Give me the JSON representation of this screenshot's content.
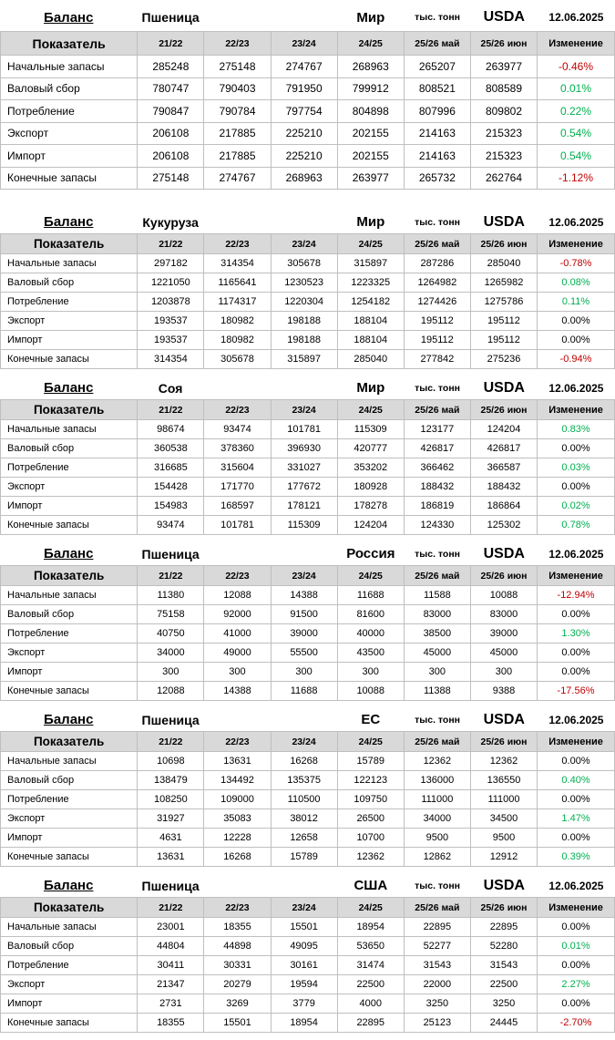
{
  "colors": {
    "positive": "#00B050",
    "negative": "#C00000",
    "neutral": "#000000",
    "header_bg": "#D9D9D9",
    "border": "#BFBFBF"
  },
  "report": {
    "columns": [
      "Показатель",
      "21/22",
      "22/23",
      "23/24",
      "24/25",
      "25/26 май",
      "25/26 июн",
      "Изменение"
    ],
    "tables": [
      {
        "balance_label": "Баланс",
        "commodity": "Пшеница",
        "region": "Мир",
        "units": "тыс. тонн",
        "source": "USDA",
        "date": "12.06.2025",
        "rows": [
          {
            "label": "Начальные запасы",
            "values": [
              "285248",
              "275148",
              "274767",
              "268963",
              "265207",
              "263977"
            ],
            "change": "-0.46%",
            "trend": "negative"
          },
          {
            "label": "Валовый сбор",
            "values": [
              "780747",
              "790403",
              "791950",
              "799912",
              "808521",
              "808589"
            ],
            "change": "0.01%",
            "trend": "positive"
          },
          {
            "label": "Потребление",
            "values": [
              "790847",
              "790784",
              "797754",
              "804898",
              "807996",
              "809802"
            ],
            "change": "0.22%",
            "trend": "positive"
          },
          {
            "label": "Экспорт",
            "values": [
              "206108",
              "217885",
              "225210",
              "202155",
              "214163",
              "215323"
            ],
            "change": "0.54%",
            "trend": "positive"
          },
          {
            "label": "Импорт",
            "values": [
              "206108",
              "217885",
              "225210",
              "202155",
              "214163",
              "215323"
            ],
            "change": "0.54%",
            "trend": "positive"
          },
          {
            "label": "Конечные запасы",
            "values": [
              "275148",
              "274767",
              "268963",
              "263977",
              "265732",
              "262764"
            ],
            "change": "-1.12%",
            "trend": "negative"
          }
        ]
      },
      {
        "balance_label": "Баланс",
        "commodity": "Кукуруза",
        "region": "Мир",
        "units": "тыс. тонн",
        "source": "USDA",
        "date": "12.06.2025",
        "rows": [
          {
            "label": "Начальные запасы",
            "values": [
              "297182",
              "314354",
              "305678",
              "315897",
              "287286",
              "285040"
            ],
            "change": "-0.78%",
            "trend": "negative"
          },
          {
            "label": "Валовый сбор",
            "values": [
              "1221050",
              "1165641",
              "1230523",
              "1223325",
              "1264982",
              "1265982"
            ],
            "change": "0.08%",
            "trend": "positive"
          },
          {
            "label": "Потребление",
            "values": [
              "1203878",
              "1174317",
              "1220304",
              "1254182",
              "1274426",
              "1275786"
            ],
            "change": "0.11%",
            "trend": "positive"
          },
          {
            "label": "Экспорт",
            "values": [
              "193537",
              "180982",
              "198188",
              "188104",
              "195112",
              "195112"
            ],
            "change": "0.00%",
            "trend": "neutral"
          },
          {
            "label": "Импорт",
            "values": [
              "193537",
              "180982",
              "198188",
              "188104",
              "195112",
              "195112"
            ],
            "change": "0.00%",
            "trend": "neutral"
          },
          {
            "label": "Конечные запасы",
            "values": [
              "314354",
              "305678",
              "315897",
              "285040",
              "277842",
              "275236"
            ],
            "change": "-0.94%",
            "trend": "negative"
          }
        ]
      },
      {
        "balance_label": "Баланс",
        "commodity": "Соя",
        "region": "Мир",
        "units": "тыс. тонн",
        "source": "USDA",
        "date": "12.06.2025",
        "rows": [
          {
            "label": "Начальные запасы",
            "values": [
              "98674",
              "93474",
              "101781",
              "115309",
              "123177",
              "124204"
            ],
            "change": "0.83%",
            "trend": "positive"
          },
          {
            "label": "Валовый сбор",
            "values": [
              "360538",
              "378360",
              "396930",
              "420777",
              "426817",
              "426817"
            ],
            "change": "0.00%",
            "trend": "neutral"
          },
          {
            "label": "Потребление",
            "values": [
              "316685",
              "315604",
              "331027",
              "353202",
              "366462",
              "366587"
            ],
            "change": "0.03%",
            "trend": "positive"
          },
          {
            "label": "Экспорт",
            "values": [
              "154428",
              "171770",
              "177672",
              "180928",
              "188432",
              "188432"
            ],
            "change": "0.00%",
            "trend": "neutral"
          },
          {
            "label": "Импорт",
            "values": [
              "154983",
              "168597",
              "178121",
              "178278",
              "186819",
              "186864"
            ],
            "change": "0.02%",
            "trend": "positive"
          },
          {
            "label": "Конечные запасы",
            "values": [
              "93474",
              "101781",
              "115309",
              "124204",
              "124330",
              "125302"
            ],
            "change": "0.78%",
            "trend": "positive"
          }
        ]
      },
      {
        "balance_label": "Баланс",
        "commodity": "Пшеница",
        "region": "Россия",
        "units": "тыс. тонн",
        "source": "USDA",
        "date": "12.06.2025",
        "rows": [
          {
            "label": "Начальные запасы",
            "values": [
              "11380",
              "12088",
              "14388",
              "11688",
              "11588",
              "10088"
            ],
            "change": "-12.94%",
            "trend": "negative"
          },
          {
            "label": "Валовый сбор",
            "values": [
              "75158",
              "92000",
              "91500",
              "81600",
              "83000",
              "83000"
            ],
            "change": "0.00%",
            "trend": "neutral"
          },
          {
            "label": "Потребление",
            "values": [
              "40750",
              "41000",
              "39000",
              "40000",
              "38500",
              "39000"
            ],
            "change": "1.30%",
            "trend": "positive"
          },
          {
            "label": "Экспорт",
            "values": [
              "34000",
              "49000",
              "55500",
              "43500",
              "45000",
              "45000"
            ],
            "change": "0.00%",
            "trend": "neutral"
          },
          {
            "label": "Импорт",
            "values": [
              "300",
              "300",
              "300",
              "300",
              "300",
              "300"
            ],
            "change": "0.00%",
            "trend": "neutral"
          },
          {
            "label": "Конечные запасы",
            "values": [
              "12088",
              "14388",
              "11688",
              "10088",
              "11388",
              "9388"
            ],
            "change": "-17.56%",
            "trend": "negative"
          }
        ]
      },
      {
        "balance_label": "Баланс",
        "commodity": "Пшеница",
        "region": "ЕС",
        "units": "тыс. тонн",
        "source": "USDA",
        "date": "12.06.2025",
        "rows": [
          {
            "label": "Начальные запасы",
            "values": [
              "10698",
              "13631",
              "16268",
              "15789",
              "12362",
              "12362"
            ],
            "change": "0.00%",
            "trend": "neutral"
          },
          {
            "label": "Валовый сбор",
            "values": [
              "138479",
              "134492",
              "135375",
              "122123",
              "136000",
              "136550"
            ],
            "change": "0.40%",
            "trend": "positive"
          },
          {
            "label": "Потребление",
            "values": [
              "108250",
              "109000",
              "110500",
              "109750",
              "111000",
              "111000"
            ],
            "change": "0.00%",
            "trend": "neutral"
          },
          {
            "label": "Экспорт",
            "values": [
              "31927",
              "35083",
              "38012",
              "26500",
              "34000",
              "34500"
            ],
            "change": "1.47%",
            "trend": "positive"
          },
          {
            "label": "Импорт",
            "values": [
              "4631",
              "12228",
              "12658",
              "10700",
              "9500",
              "9500"
            ],
            "change": "0.00%",
            "trend": "neutral"
          },
          {
            "label": "Конечные запасы",
            "values": [
              "13631",
              "16268",
              "15789",
              "12362",
              "12862",
              "12912"
            ],
            "change": "0.39%",
            "trend": "positive"
          }
        ]
      },
      {
        "balance_label": "Баланс",
        "commodity": "Пшеница",
        "region": "США",
        "units": "тыс. тонн",
        "source": "USDA",
        "date": "12.06.2025",
        "rows": [
          {
            "label": "Начальные запасы",
            "values": [
              "23001",
              "18355",
              "15501",
              "18954",
              "22895",
              "22895"
            ],
            "change": "0.00%",
            "trend": "neutral"
          },
          {
            "label": "Валовый сбор",
            "values": [
              "44804",
              "44898",
              "49095",
              "53650",
              "52277",
              "52280"
            ],
            "change": "0.01%",
            "trend": "positive"
          },
          {
            "label": "Потребление",
            "values": [
              "30411",
              "30331",
              "30161",
              "31474",
              "31543",
              "31543"
            ],
            "change": "0.00%",
            "trend": "neutral"
          },
          {
            "label": "Экспорт",
            "values": [
              "21347",
              "20279",
              "19594",
              "22500",
              "22000",
              "22500"
            ],
            "change": "2.27%",
            "trend": "positive"
          },
          {
            "label": "Импорт",
            "values": [
              "2731",
              "3269",
              "3779",
              "4000",
              "3250",
              "3250"
            ],
            "change": "0.00%",
            "trend": "neutral"
          },
          {
            "label": "Конечные запасы",
            "values": [
              "18355",
              "15501",
              "18954",
              "22895",
              "25123",
              "24445"
            ],
            "change": "-2.70%",
            "trend": "negative"
          }
        ]
      }
    ]
  }
}
